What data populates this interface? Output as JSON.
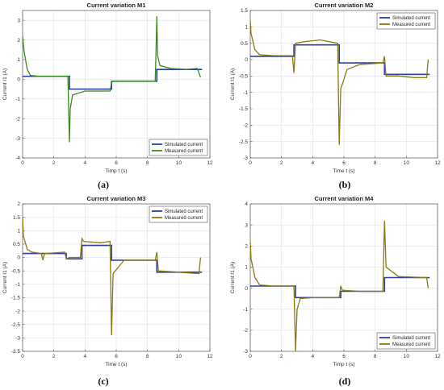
{
  "chart_data": [
    {
      "type": "line",
      "panel_label": "(a)",
      "title": "Current variation M1",
      "xlabel": "Timp t (s)",
      "ylabel": "Current I1 (A)",
      "xlim": [
        0,
        12
      ],
      "ylim": [
        -4,
        3.5
      ],
      "xticks": [
        "0",
        "2",
        "4",
        "6",
        "8",
        "10",
        "12"
      ],
      "yticks": [
        "-4",
        "-3",
        "-2",
        "-1",
        "0",
        "1",
        "2",
        "3"
      ],
      "grid": true,
      "legend_position": "bottom-right",
      "series": [
        {
          "name": "Simulated current",
          "color": "#2b3fa6",
          "x": [
            0,
            3,
            3,
            5.7,
            5.7,
            8.6,
            8.6,
            11.5
          ],
          "y": [
            0.15,
            0.15,
            -0.5,
            -0.5,
            -0.1,
            -0.1,
            0.5,
            0.5
          ]
        },
        {
          "name": "Measured current",
          "color": "#3e8a1f",
          "x": [
            0,
            0.1,
            0.3,
            0.5,
            1,
            2,
            2.9,
            3,
            3.05,
            3.2,
            4,
            5,
            5.6,
            5.7,
            5.75,
            6,
            7,
            8.5,
            8.6,
            8.65,
            8.8,
            9.5,
            10.5,
            11.2,
            11.4
          ],
          "y": [
            2.2,
            1.4,
            0.5,
            0.2,
            0.15,
            0.15,
            0.15,
            -3.2,
            -1.5,
            -0.8,
            -0.6,
            -0.6,
            -0.6,
            -0.2,
            -0.1,
            -0.1,
            -0.1,
            -0.1,
            3.2,
            1.2,
            0.7,
            0.55,
            0.5,
            0.55,
            0.1
          ]
        }
      ]
    },
    {
      "type": "line",
      "panel_label": "(b)",
      "title": "Current variation M2",
      "xlabel": "Time t (s)",
      "ylabel": "Current I1 (A)",
      "xlim": [
        0,
        12
      ],
      "ylim": [
        -3,
        1.5
      ],
      "xticks": [
        "0",
        "2",
        "4",
        "6",
        "8",
        "10",
        "12"
      ],
      "yticks": [
        "-3",
        "-2.5",
        "-2",
        "-1.5",
        "-1",
        "-0.5",
        "0",
        "0.5",
        "1",
        "1.5"
      ],
      "grid": true,
      "legend_position": "top-right",
      "series": [
        {
          "name": "Simulated current",
          "color": "#2b3fa6",
          "x": [
            0,
            2.8,
            2.8,
            5.7,
            5.7,
            8.6,
            8.6,
            11.5
          ],
          "y": [
            0.1,
            0.1,
            0.45,
            0.45,
            -0.1,
            -0.1,
            -0.45,
            -0.45
          ]
        },
        {
          "name": "Measured current",
          "color": "#8a7a12",
          "x": [
            0,
            0.05,
            0.3,
            0.6,
            1.5,
            2.7,
            2.8,
            2.9,
            3.5,
            4.5,
            5.6,
            5.7,
            5.8,
            6.2,
            7,
            8.5,
            8.6,
            8.7,
            9.5,
            10.5,
            11.3,
            11.4
          ],
          "y": [
            1.2,
            0.8,
            0.3,
            0.15,
            0.12,
            0.12,
            -0.4,
            0.5,
            0.55,
            0.6,
            0.5,
            -2.6,
            -0.9,
            -0.3,
            -0.15,
            -0.1,
            0.1,
            -0.5,
            -0.5,
            -0.55,
            -0.55,
            0.0
          ]
        }
      ]
    },
    {
      "type": "line",
      "panel_label": "(c)",
      "title": "Current variation M3",
      "xlabel": "Time t (s)",
      "ylabel": "Current I1 (A)",
      "xlim": [
        0,
        12
      ],
      "ylim": [
        -3.5,
        2
      ],
      "xticks": [
        "0",
        "2",
        "4",
        "6",
        "8",
        "10",
        "12"
      ],
      "yticks": [
        "-3.5",
        "-3",
        "-2.5",
        "-2",
        "-1.5",
        "-1",
        "-0.5",
        "0",
        "0.5",
        "1",
        "1.5",
        "2"
      ],
      "grid": true,
      "legend_position": "top-right",
      "series": [
        {
          "name": "Simulated current",
          "color": "#2b3fa6",
          "x": [
            0,
            2.8,
            2.8,
            3.8,
            3.8,
            5.7,
            5.7,
            8.6,
            8.6,
            11.5
          ],
          "y": [
            0.15,
            0.15,
            -0.05,
            -0.05,
            0.45,
            0.45,
            -0.1,
            -0.1,
            -0.55,
            -0.55
          ]
        },
        {
          "name": "Measured current",
          "color": "#8a7a12",
          "x": [
            0,
            0.05,
            0.3,
            0.6,
            1.2,
            1.3,
            1.4,
            2.7,
            2.8,
            3.0,
            3.7,
            3.8,
            3.9,
            5.0,
            5.6,
            5.7,
            5.8,
            6.5,
            8.5,
            8.6,
            8.7,
            10,
            11.3,
            11.4
          ],
          "y": [
            1.5,
            0.8,
            0.3,
            0.2,
            0.15,
            -0.1,
            0.15,
            0.2,
            -0.05,
            0.0,
            0.0,
            0.7,
            0.6,
            0.55,
            0.6,
            -2.9,
            -0.6,
            -0.1,
            -0.1,
            0.2,
            -0.5,
            -0.55,
            -0.6,
            0.0
          ]
        }
      ]
    },
    {
      "type": "line",
      "panel_label": "(d)",
      "title": "Current variation M4",
      "xlabel": "Timp t (s)",
      "ylabel": "Current I1 (A)",
      "xlim": [
        0,
        12
      ],
      "ylim": [
        -3,
        4
      ],
      "xticks": [
        "0",
        "2",
        "4",
        "6",
        "8",
        "10",
        "12"
      ],
      "yticks": [
        "-3",
        "-2",
        "-1",
        "0",
        "1",
        "2",
        "3",
        "4"
      ],
      "grid": true,
      "legend_position": "bottom-right",
      "series": [
        {
          "name": "Simulated current",
          "color": "#2b3fa6",
          "x": [
            0,
            2.9,
            2.9,
            5.8,
            5.8,
            8.6,
            8.6,
            11.5
          ],
          "y": [
            0.1,
            0.1,
            -0.45,
            -0.45,
            -0.15,
            -0.15,
            0.5,
            0.5
          ]
        },
        {
          "name": "Measured current",
          "color": "#8a7a12",
          "x": [
            0,
            0.05,
            0.3,
            0.6,
            1.5,
            2.8,
            2.9,
            3.0,
            3.2,
            4,
            5.7,
            5.8,
            5.9,
            7,
            8.5,
            8.6,
            8.7,
            9.5,
            11.3,
            11.4
          ],
          "y": [
            2.2,
            1.4,
            0.5,
            0.15,
            0.1,
            0.1,
            -3.0,
            -1.0,
            -0.5,
            -0.45,
            -0.45,
            0.1,
            -0.1,
            -0.15,
            -0.15,
            3.2,
            1.0,
            0.55,
            0.5,
            0.0
          ]
        }
      ]
    }
  ]
}
